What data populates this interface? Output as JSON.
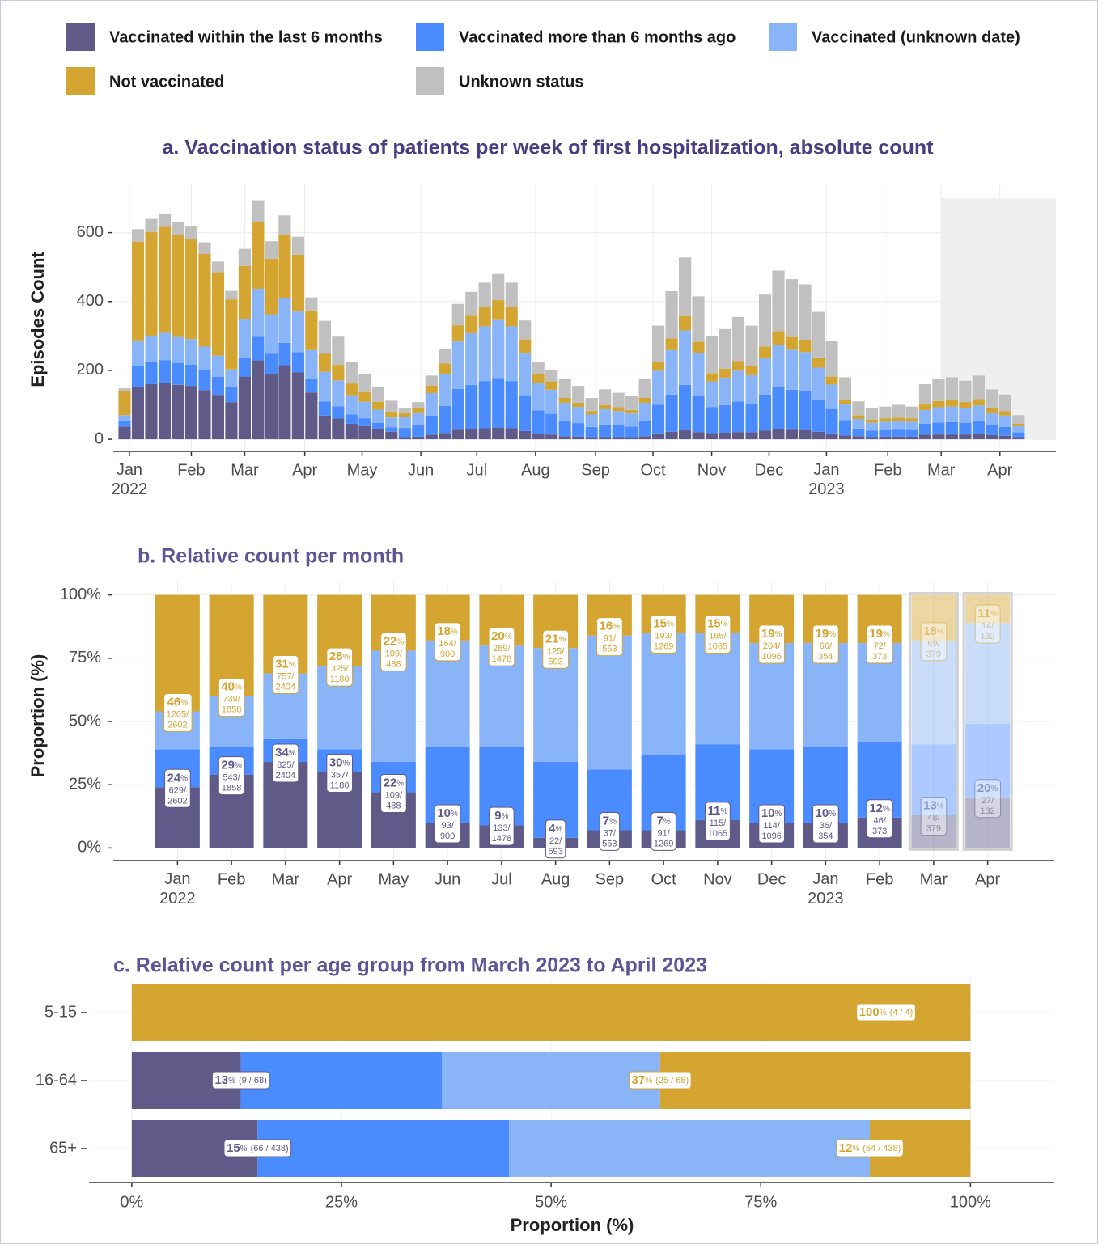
{
  "chart_data": [
    {
      "type": "bar",
      "stacked": true,
      "title": "a. Vaccination status of patients per week of first hospitalization, absolute count",
      "ylabel": "Episodes Count",
      "categories": [
        null,
        null,
        null,
        null,
        null,
        null,
        null,
        null,
        null,
        null,
        null,
        null,
        null,
        null,
        null,
        null,
        null,
        null,
        null,
        null,
        null,
        null,
        null,
        null,
        null,
        null,
        null,
        null,
        null,
        null,
        null,
        null,
        null,
        null,
        null,
        null,
        null,
        null,
        null,
        null,
        null,
        null,
        null,
        null,
        null,
        null,
        null,
        null,
        null,
        null,
        null,
        null,
        null,
        null,
        null,
        null,
        null,
        null,
        null,
        null,
        null,
        null,
        null,
        null,
        null,
        null,
        null,
        null
      ],
      "xlim": [
        -0.85,
        69.8
      ],
      "xticks": [
        {
          "value": 0.36,
          "label": "Jan\n2022"
        },
        {
          "value": 5.0,
          "label": "Feb"
        },
        {
          "value": 9.0,
          "label": "Mar"
        },
        {
          "value": 13.5,
          "label": "Apr"
        },
        {
          "value": 17.8,
          "label": "May"
        },
        {
          "value": 22.2,
          "label": "Jun"
        },
        {
          "value": 26.4,
          "label": "Jul"
        },
        {
          "value": 30.8,
          "label": "Aug"
        },
        {
          "value": 35.3,
          "label": "Sep"
        },
        {
          "value": 39.6,
          "label": "Oct"
        },
        {
          "value": 44.0,
          "label": "Nov"
        },
        {
          "value": 48.3,
          "label": "Dec"
        },
        {
          "value": 52.6,
          "label": "Jan\n2023"
        },
        {
          "value": 57.2,
          "label": "Feb"
        },
        {
          "value": 61.2,
          "label": "Mar"
        },
        {
          "value": 65.6,
          "label": "Apr"
        }
      ],
      "ylim": [
        -35,
        740
      ],
      "yticks": [
        0,
        200,
        400,
        600
      ],
      "grid": true,
      "series": [
        {
          "name": "Vaccinated within the last 6 months",
          "color": "#5f5a88",
          "values": [
            37,
            153,
            160,
            164,
            158,
            155,
            143,
            129,
            108,
            182,
            229,
            190,
            215,
            194,
            136,
            69,
            60,
            45,
            38,
            30,
            22,
            6,
            8,
            13,
            18,
            28,
            30,
            32,
            34,
            32,
            24,
            16,
            14,
            9,
            8,
            6,
            7,
            7,
            6,
            9,
            17,
            22,
            26,
            21,
            18,
            19,
            21,
            20,
            25,
            29,
            28,
            27,
            22,
            17,
            11,
            9,
            7,
            8,
            8,
            8,
            13,
            14,
            14,
            14,
            15,
            12,
            10,
            6
          ]
        },
        {
          "name": "Vaccinated more than 6 months ago",
          "color": "#4a8cff",
          "values": [
            15,
            61,
            64,
            66,
            63,
            62,
            57,
            52,
            43,
            55,
            69,
            58,
            65,
            59,
            41,
            41,
            36,
            27,
            23,
            18,
            13,
            27,
            32,
            56,
            79,
            118,
            128,
            137,
            144,
            137,
            104,
            68,
            60,
            44,
            39,
            30,
            36,
            34,
            31,
            44,
            83,
            108,
            132,
            104,
            75,
            80,
            89,
            83,
            105,
            123,
            116,
            113,
            93,
            71,
            45,
            22,
            18,
            19,
            20,
            19,
            32,
            35,
            36,
            34,
            37,
            29,
            26,
            14
          ]
        },
        {
          "name": "Vaccinated (unknown date)",
          "color": "#8ab4f8",
          "values": [
            18,
            73,
            77,
            79,
            76,
            74,
            69,
            62,
            52,
            111,
            139,
            115,
            130,
            118,
            82,
            86,
            75,
            56,
            48,
            38,
            28,
            32,
            38,
            65,
            92,
            138,
            150,
            159,
            168,
            159,
            121,
            79,
            70,
            53,
            47,
            36,
            44,
            41,
            38,
            53,
            99,
            129,
            158,
            125,
            75,
            80,
            89,
            83,
            105,
            123,
            116,
            113,
            93,
            71,
            45,
            28,
            23,
            24,
            25,
            24,
            40,
            44,
            45,
            43,
            46,
            36,
            33,
            18
          ]
        },
        {
          "name": "Not vaccinated",
          "color": "#d4a531",
          "values": [
            70,
            287,
            301,
            308,
            296,
            290,
            269,
            242,
            203,
            155,
            194,
            161,
            182,
            165,
            115,
            52,
            45,
            34,
            28,
            23,
            17,
            11,
            13,
            22,
            31,
            47,
            51,
            55,
            58,
            55,
            41,
            27,
            24,
            14,
            12,
            10,
            12,
            11,
            10,
            14,
            26,
            34,
            42,
            33,
            24,
            26,
            28,
            26,
            34,
            39,
            37,
            36,
            30,
            23,
            14,
            11,
            9,
            10,
            10,
            10,
            16,
            18,
            18,
            17,
            19,
            15,
            13,
            7
          ]
        },
        {
          "name": "Unknown status",
          "color": "#c0c0c0",
          "values": [
            8,
            36,
            38,
            38,
            37,
            37,
            34,
            31,
            25,
            50,
            63,
            51,
            58,
            52,
            38,
            96,
            82,
            63,
            53,
            43,
            32,
            14,
            17,
            29,
            42,
            62,
            69,
            72,
            76,
            72,
            55,
            35,
            32,
            55,
            49,
            38,
            46,
            42,
            40,
            55,
            105,
            137,
            170,
            132,
            108,
            115,
            128,
            118,
            151,
            176,
            168,
            161,
            132,
            103,
            65,
            40,
            33,
            34,
            37,
            34,
            59,
            64,
            67,
            62,
            68,
            53,
            48,
            25
          ]
        }
      ]
    },
    {
      "type": "bar",
      "stacked": true,
      "title": "b. Relative count per month",
      "ylabel": "Proportion (%)",
      "categories": [
        "Jan\n2022",
        "Feb",
        "Mar",
        "Apr",
        "May",
        "Jun",
        "Jul",
        "Aug",
        "Sep",
        "Oct",
        "Nov",
        "Dec",
        "Jan\n2023",
        "Feb",
        "Mar",
        "Apr"
      ],
      "incomplete": [
        false,
        false,
        false,
        false,
        false,
        false,
        false,
        false,
        false,
        false,
        false,
        false,
        false,
        false,
        true,
        true
      ],
      "ylim": [
        -5,
        105
      ],
      "yticks": [
        {
          "value": 0,
          "label": "0%"
        },
        {
          "value": 25,
          "label": "25%"
        },
        {
          "value": 50,
          "label": "50%"
        },
        {
          "value": 75,
          "label": "75%"
        },
        {
          "value": 100,
          "label": "100%"
        }
      ],
      "grid": true,
      "series": [
        {
          "name": "Vaccinated within the last 6 months",
          "color": "#5f5a88",
          "values": [
            24,
            29,
            34,
            30,
            22,
            10,
            9,
            4,
            7,
            7,
            11,
            10,
            10,
            12,
            13,
            20
          ],
          "value_labels": [
            "24%",
            "29%",
            "34%",
            "30%",
            "22%",
            "10%",
            "9%",
            "4%",
            "7%",
            "7%",
            "11%",
            "10%",
            "10%",
            "12%",
            "13%",
            "20%"
          ],
          "count_labels": [
            "629/2602",
            "543/1858",
            "825/2404",
            "357/1180",
            "109/488",
            "93/900",
            "133/1478",
            "22/593",
            "37/553",
            "91/1269",
            "115/1065",
            "114/1096",
            "36/354",
            "46/373",
            "48/379",
            "27/132"
          ]
        },
        {
          "name": "Vaccinated more than 6 months ago",
          "color": "#4a8cff",
          "values": [
            15,
            11,
            9,
            9,
            12,
            30,
            31,
            30,
            24,
            30,
            30,
            29,
            30,
            30,
            28,
            29
          ]
        },
        {
          "name": "Vaccinated (unknown date)",
          "color": "#8ab4f8",
          "values": [
            15,
            20,
            26,
            33,
            44,
            42,
            40,
            45,
            53,
            48,
            44,
            42,
            41,
            39,
            41,
            40
          ]
        },
        {
          "name": "Not vaccinated",
          "color": "#d4a531",
          "values": [
            46,
            40,
            31,
            28,
            22,
            18,
            20,
            21,
            16,
            15,
            15,
            19,
            19,
            19,
            18,
            11
          ],
          "value_labels": [
            "46%",
            "40%",
            "31%",
            "28%",
            "22%",
            "18%",
            "20%",
            "21%",
            "16%",
            "15%",
            "15%",
            "19%",
            "19%",
            "19%",
            "18%",
            "11%"
          ],
          "count_labels": [
            "1205/2602",
            "739/1858",
            "757/2404",
            "325/1180",
            "109/488",
            "164/900",
            "289/1478",
            "125/593",
            "91/553",
            "193/1269",
            "165/1065",
            "204/1096",
            "66/354",
            "72/373",
            "69/379",
            "14/132"
          ]
        }
      ]
    },
    {
      "type": "bar",
      "stacked": true,
      "horizontal": true,
      "title": "c. Relative count per age group from March 2023 to April 2023",
      "xlabel": "Proportion (%)",
      "categories": [
        "5-15",
        "16-64",
        "65+"
      ],
      "xlim": [
        -5.1,
        110
      ],
      "xticks": [
        {
          "value": 0,
          "label": "0%"
        },
        {
          "value": 25,
          "label": "25%"
        },
        {
          "value": 50,
          "label": "50%"
        },
        {
          "value": 75,
          "label": "75%"
        },
        {
          "value": 100,
          "label": "100%"
        }
      ],
      "grid": true,
      "series": [
        {
          "name": "Vaccinated within the last 6 months",
          "color": "#5f5a88",
          "values": [
            0,
            13,
            15
          ],
          "value_labels": [
            null,
            "13%",
            "15%"
          ],
          "count_labels": [
            null,
            "(9 / 68)",
            "(66 / 438)"
          ]
        },
        {
          "name": "Vaccinated more than 6 months ago",
          "color": "#4a8cff",
          "values": [
            0,
            24,
            30
          ]
        },
        {
          "name": "Vaccinated (unknown date)",
          "color": "#8ab4f8",
          "values": [
            0,
            26,
            43
          ]
        },
        {
          "name": "Not vaccinated",
          "color": "#d4a531",
          "values": [
            100,
            37,
            12
          ],
          "value_labels": [
            "100%",
            "37%",
            "12%"
          ],
          "count_labels": [
            "(4 / 4)",
            "(25 / 68)",
            "(54 / 438)"
          ]
        }
      ]
    }
  ]
}
